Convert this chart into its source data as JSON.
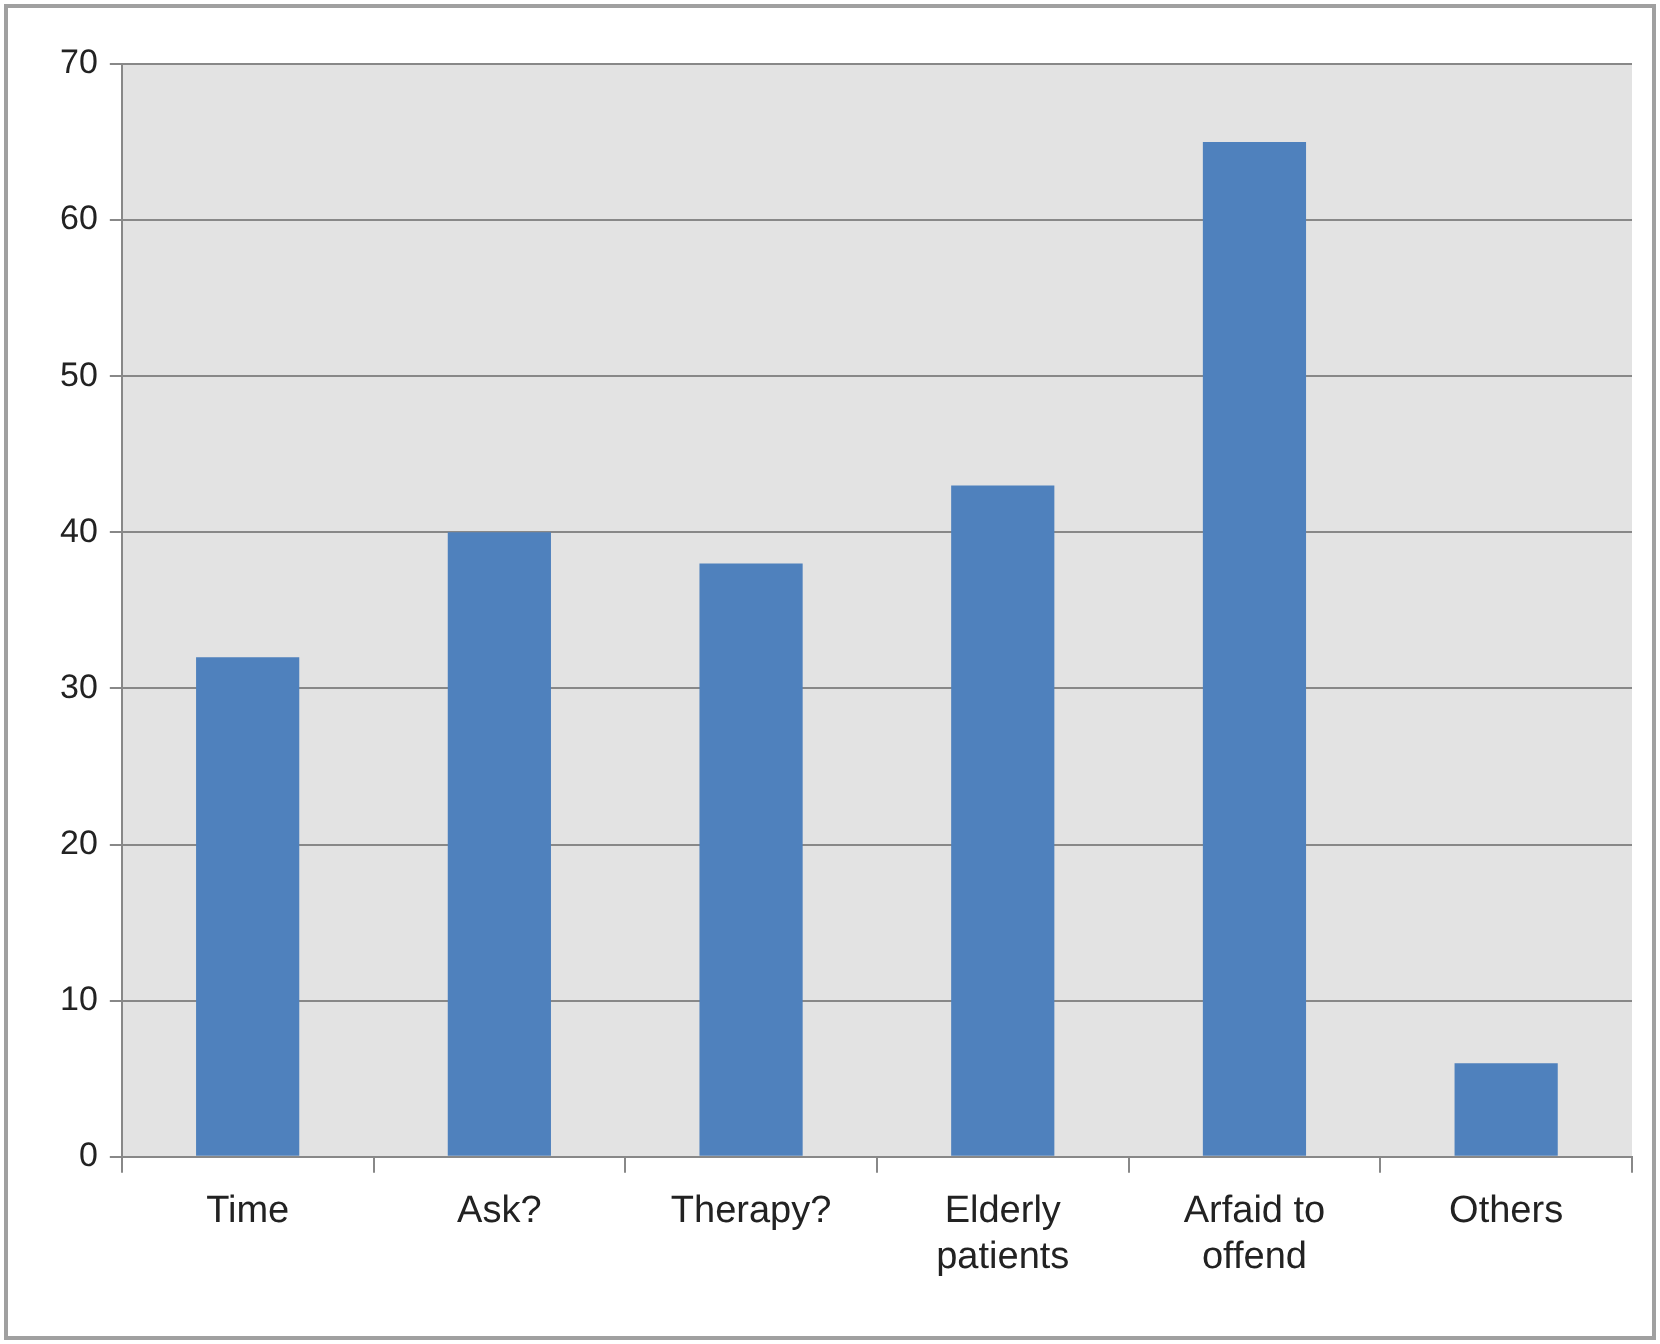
{
  "chart_data": {
    "type": "bar",
    "categories": [
      "Time",
      "Ask?",
      "Therapy?",
      "Elderly patients",
      "Arfaid to offend",
      "Others"
    ],
    "values": [
      32,
      40,
      38,
      43,
      65,
      6
    ],
    "color": "#4f81bd",
    "ylim": [
      0,
      70
    ],
    "yticks": [
      0,
      10,
      20,
      30,
      40,
      50,
      60,
      70
    ],
    "grid": "y",
    "legend": false
  }
}
